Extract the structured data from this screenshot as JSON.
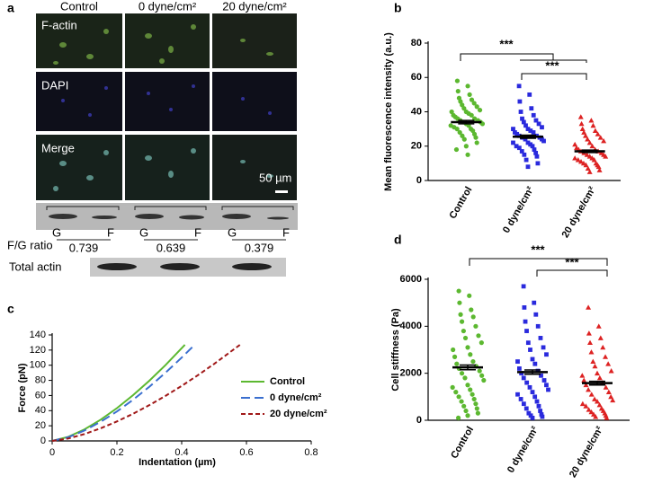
{
  "figure_a": {
    "panel_label": "a",
    "columns": [
      "Control",
      "0 dyne/cm²",
      "20 dyne/cm²"
    ],
    "rows": [
      "F-actin",
      "DAPI",
      "Merge"
    ],
    "scale_bar": "50 µm",
    "lanes": [
      "G",
      "F",
      "G",
      "F",
      "G",
      "F"
    ],
    "ratio_label": "F/G ratio",
    "ratios": [
      0.739,
      0.639,
      0.379
    ],
    "total_label": "Total actin"
  },
  "chart_data": [
    {
      "type": "dot",
      "panel_label": "b",
      "ylabel": "Mean fluorescence intensity (a.u.)",
      "ylim": [
        0,
        80
      ],
      "yticks": [
        0,
        20,
        40,
        60,
        80
      ],
      "categories": [
        "Control",
        "0 dyne/cm²",
        "20 dyne/cm²"
      ],
      "annotations": [
        "***",
        "***"
      ],
      "groups": [
        {
          "color": "#5cb830",
          "marker": "circle",
          "mean": 34,
          "sem": 1,
          "values": [
            58,
            55,
            52,
            50,
            48,
            47,
            46,
            45,
            44,
            43,
            42,
            41,
            40,
            40,
            39,
            38,
            38,
            37,
            36,
            36,
            35,
            35,
            34,
            34,
            33,
            33,
            32,
            32,
            31,
            30,
            30,
            29,
            28,
            27,
            26,
            25,
            24,
            22,
            20,
            18,
            15
          ]
        },
        {
          "color": "#2a2add",
          "marker": "square",
          "mean": 25.5,
          "sem": 0.9,
          "values": [
            55,
            50,
            46,
            42,
            40,
            38,
            36,
            35,
            34,
            33,
            32,
            31,
            30,
            30,
            29,
            28,
            28,
            27,
            26,
            26,
            25,
            25,
            24,
            24,
            23,
            22,
            22,
            21,
            20,
            20,
            19,
            18,
            17,
            16,
            15,
            14,
            12,
            10,
            8
          ]
        },
        {
          "color": "#dd2222",
          "marker": "triangle",
          "mean": 17,
          "sem": 0.7,
          "values": [
            37,
            35,
            33,
            32,
            30,
            29,
            28,
            27,
            26,
            25,
            24,
            23,
            22,
            21,
            20,
            19,
            18,
            18,
            17,
            17,
            16,
            16,
            15,
            15,
            14,
            14,
            13,
            13,
            12,
            12,
            11,
            10,
            10,
            9,
            9,
            8,
            7,
            6,
            5
          ]
        }
      ]
    },
    {
      "type": "line",
      "panel_label": "c",
      "xlabel": "Indentation (µm)",
      "ylabel": "Force (pN)",
      "xlim": [
        0,
        0.8
      ],
      "xticks": [
        0,
        0.2,
        0.4,
        0.6,
        0.8
      ],
      "ylim": [
        0,
        140
      ],
      "yticks": [
        0,
        20,
        40,
        60,
        80,
        100,
        120,
        140
      ],
      "series": [
        {
          "name": "Control",
          "color": "#5cb830",
          "dash": "solid",
          "x": [
            0,
            0.05,
            0.1,
            0.15,
            0.2,
            0.25,
            0.3,
            0.35,
            0.41
          ],
          "values": [
            0,
            5.4,
            15.3,
            28.1,
            43.3,
            60.5,
            79.5,
            100.2,
            127
          ]
        },
        {
          "name": "0 dyne/cm²",
          "color": "#3a6fcf",
          "dash": "long",
          "x": [
            0,
            0.05,
            0.1,
            0.15,
            0.2,
            0.25,
            0.3,
            0.35,
            0.4,
            0.44
          ],
          "values": [
            0,
            4.9,
            13.8,
            25.3,
            38.9,
            54.4,
            71.5,
            90.1,
            110.1,
            127
          ]
        },
        {
          "name": "20 dyne/cm²",
          "color": "#a01818",
          "dash": "short",
          "x": [
            0,
            0.05,
            0.1,
            0.15,
            0.2,
            0.25,
            0.3,
            0.35,
            0.4,
            0.45,
            0.5,
            0.58
          ],
          "values": [
            0,
            3.2,
            9.1,
            16.7,
            25.7,
            35.9,
            47.3,
            59.5,
            72.7,
            86.8,
            101.7,
            127
          ]
        }
      ]
    },
    {
      "type": "dot",
      "panel_label": "d",
      "ylabel": "Cell stiffness (Pa)",
      "ylim": [
        0,
        6000
      ],
      "yticks": [
        0,
        2000,
        4000,
        6000
      ],
      "categories": [
        "Control",
        "0 dyne/cm²",
        "20 dyne/cm²"
      ],
      "annotations": [
        "***",
        "***"
      ],
      "groups": [
        {
          "color": "#5cb830",
          "marker": "circle",
          "mean": 2250,
          "sem": 100,
          "values": [
            5500,
            5300,
            5000,
            4700,
            4500,
            4400,
            4200,
            4000,
            3800,
            3600,
            3500,
            3300,
            3100,
            3000,
            2800,
            2700,
            2500,
            2400,
            2300,
            2200,
            2100,
            2000,
            1900,
            1800,
            1700,
            1500,
            1400,
            1300,
            1200,
            1100,
            1000,
            900,
            800,
            700,
            600,
            500,
            400,
            300,
            200,
            100
          ]
        },
        {
          "color": "#2a2add",
          "marker": "square",
          "mean": 2050,
          "sem": 90,
          "values": [
            5700,
            5000,
            4800,
            4500,
            4200,
            4000,
            3800,
            3500,
            3300,
            3100,
            3000,
            2800,
            2600,
            2500,
            2400,
            2200,
            2100,
            2000,
            1900,
            1800,
            1700,
            1600,
            1500,
            1400,
            1300,
            1200,
            1100,
            1000,
            900,
            800,
            700,
            600,
            500,
            400,
            300,
            250,
            200,
            150,
            100
          ]
        },
        {
          "color": "#dd2222",
          "marker": "triangle",
          "mean": 1580,
          "sem": 80,
          "values": [
            4800,
            4000,
            3700,
            3500,
            3300,
            3100,
            2900,
            2700,
            2500,
            2400,
            2300,
            2100,
            2000,
            1900,
            1800,
            1700,
            1600,
            1500,
            1400,
            1300,
            1200,
            1100,
            1000,
            900,
            850,
            800,
            700,
            650,
            600,
            500,
            450,
            400,
            350,
            300,
            250,
            200,
            150,
            100
          ]
        }
      ]
    }
  ]
}
